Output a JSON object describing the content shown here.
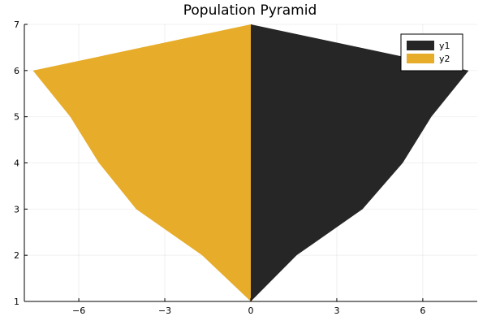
{
  "chart_data": {
    "type": "area",
    "title": "Population Pyramid",
    "xlabel": "",
    "ylabel": "",
    "xlim": [
      -7.9,
      7.9
    ],
    "ylim": [
      1,
      7
    ],
    "xticks": [
      -6,
      -3,
      0,
      3,
      6
    ],
    "xtick_labels": [
      "−6",
      "−3",
      "0",
      "3",
      "6"
    ],
    "yticks": [
      1,
      2,
      3,
      4,
      5,
      6,
      7
    ],
    "ytick_labels": [
      "1",
      "2",
      "3",
      "4",
      "5",
      "6",
      "7"
    ],
    "grid": true,
    "legend_position": "top-right",
    "y": [
      1,
      2,
      3,
      4,
      5,
      6,
      7
    ],
    "series": [
      {
        "name": "y1",
        "color": "#262626",
        "values": [
          0.0,
          1.6,
          3.9,
          5.3,
          6.3,
          7.6,
          0.0
        ]
      },
      {
        "name": "y2",
        "color": "#E7AC2A",
        "values": [
          0.0,
          -1.7,
          -4.0,
          -5.3,
          -6.3,
          -7.6,
          0.0
        ]
      }
    ]
  }
}
